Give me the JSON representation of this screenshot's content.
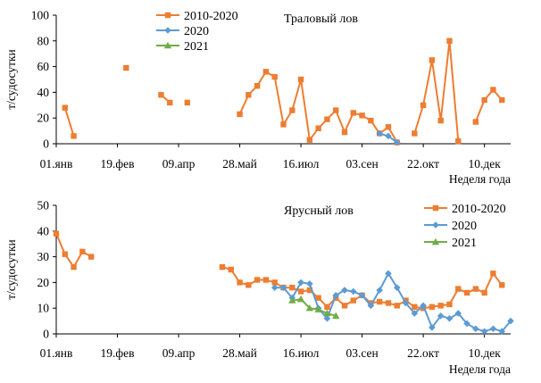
{
  "chart_data": [
    {
      "type": "line",
      "annotation": "Траловый лов",
      "ylabel": "т/судосутки",
      "xlabel": "Неделя года",
      "ylim": [
        0,
        100
      ],
      "yticks": [
        0,
        20,
        40,
        60,
        80,
        100
      ],
      "xlim": [
        1,
        53
      ],
      "xticks": [
        {
          "week": 1,
          "label": "01.янв"
        },
        {
          "week": 8,
          "label": "19.фев"
        },
        {
          "week": 15,
          "label": "09.апр"
        },
        {
          "week": 22,
          "label": "28.май"
        },
        {
          "week": 29,
          "label": "16.июл"
        },
        {
          "week": 36,
          "label": "03.сен"
        },
        {
          "week": 43,
          "label": "22.окт"
        },
        {
          "week": 50,
          "label": "10.дек"
        }
      ],
      "grid": false,
      "legend": "top-left",
      "series": [
        {
          "name": "2010-2020",
          "color": "#ED7D31",
          "marker": "square",
          "segments": [
            [
              [
                2,
                28
              ],
              [
                3,
                6
              ]
            ],
            [
              [
                9,
                59
              ]
            ],
            [
              [
                13,
                38
              ],
              [
                14,
                32
              ]
            ],
            [
              [
                16,
                32
              ]
            ],
            [
              [
                22,
                23
              ],
              [
                23,
                38
              ],
              [
                24,
                45
              ],
              [
                25,
                56
              ],
              [
                26,
                52
              ],
              [
                27,
                15
              ],
              [
                28,
                26
              ],
              [
                29,
                50
              ],
              [
                30,
                3
              ],
              [
                31,
                12
              ],
              [
                32,
                19
              ],
              [
                33,
                26
              ],
              [
                34,
                9
              ],
              [
                35,
                24
              ],
              [
                36,
                22
              ],
              [
                37,
                18
              ],
              [
                38,
                8
              ],
              [
                39,
                13
              ],
              [
                40,
                1
              ]
            ],
            [
              [
                42,
                8
              ],
              [
                43,
                30
              ],
              [
                44,
                65
              ],
              [
                45,
                18
              ],
              [
                46,
                80
              ],
              [
                47,
                2
              ]
            ],
            [
              [
                49,
                17
              ],
              [
                50,
                34
              ],
              [
                51,
                42
              ],
              [
                52,
                34
              ]
            ]
          ]
        },
        {
          "name": "2020",
          "color": "#5B9BD5",
          "marker": "diamond",
          "segments": [
            [
              [
                38,
                8
              ],
              [
                39,
                6
              ],
              [
                40,
                1
              ]
            ]
          ]
        },
        {
          "name": "2021",
          "color": "#70AD47",
          "marker": "triangle",
          "segments": []
        }
      ]
    },
    {
      "type": "line",
      "annotation": "Ярусный лов",
      "ylabel": "т/судосутки",
      "xlabel": "Неделя года",
      "ylim": [
        0,
        50
      ],
      "yticks": [
        0,
        10,
        20,
        30,
        40,
        50
      ],
      "xlim": [
        1,
        53
      ],
      "xticks": [
        {
          "week": 1,
          "label": "01.янв"
        },
        {
          "week": 8,
          "label": "19.фев"
        },
        {
          "week": 15,
          "label": "09.апр"
        },
        {
          "week": 22,
          "label": "28.май"
        },
        {
          "week": 29,
          "label": "16.июл"
        },
        {
          "week": 36,
          "label": "03.сен"
        },
        {
          "week": 43,
          "label": "22.окт"
        },
        {
          "week": 50,
          "label": "10.дек"
        }
      ],
      "grid": false,
      "legend": "top-right",
      "series": [
        {
          "name": "2010-2020",
          "color": "#ED7D31",
          "marker": "square",
          "segments": [
            [
              [
                1,
                39
              ],
              [
                2,
                31
              ],
              [
                3,
                26
              ],
              [
                4,
                32
              ],
              [
                5,
                30
              ]
            ],
            [
              [
                20,
                26
              ],
              [
                21,
                25
              ],
              [
                22,
                20
              ],
              [
                23,
                19
              ],
              [
                24,
                21
              ],
              [
                25,
                21
              ],
              [
                26,
                20
              ],
              [
                27,
                18
              ],
              [
                28,
                18
              ],
              [
                29,
                16.5
              ],
              [
                30,
                17
              ],
              [
                31,
                14
              ],
              [
                32,
                10.5
              ],
              [
                33,
                14
              ],
              [
                34,
                11
              ],
              [
                35,
                13
              ],
              [
                36,
                15
              ],
              [
                37,
                12
              ],
              [
                38,
                12.5
              ],
              [
                39,
                12
              ],
              [
                40,
                11
              ],
              [
                41,
                13
              ],
              [
                42,
                10.5
              ],
              [
                43,
                10
              ],
              [
                44,
                10.5
              ],
              [
                45,
                11
              ],
              [
                46,
                11.5
              ],
              [
                47,
                17.5
              ],
              [
                48,
                16
              ],
              [
                49,
                17.5
              ],
              [
                50,
                16
              ],
              [
                51,
                23.5
              ],
              [
                52,
                19
              ]
            ]
          ]
        },
        {
          "name": "2020",
          "color": "#5B9BD5",
          "marker": "diamond",
          "segments": [
            [
              [
                26,
                18
              ],
              [
                27,
                18
              ],
              [
                28,
                14
              ],
              [
                29,
                20
              ],
              [
                30,
                19.5
              ],
              [
                31,
                10
              ],
              [
                32,
                6
              ],
              [
                33,
                15
              ],
              [
                34,
                17
              ],
              [
                35,
                16.5
              ],
              [
                36,
                15
              ],
              [
                37,
                11
              ],
              [
                38,
                17
              ],
              [
                39,
                23.5
              ],
              [
                40,
                18
              ],
              [
                41,
                12
              ],
              [
                42,
                8
              ],
              [
                43,
                11
              ],
              [
                44,
                2.5
              ],
              [
                45,
                7
              ],
              [
                46,
                6
              ],
              [
                47,
                8
              ],
              [
                48,
                4
              ],
              [
                49,
                2
              ],
              [
                50,
                1
              ],
              [
                51,
                2
              ],
              [
                52,
                1
              ],
              [
                53,
                5
              ]
            ]
          ]
        },
        {
          "name": "2021",
          "color": "#70AD47",
          "marker": "triangle",
          "segments": [
            [
              [
                28,
                13
              ],
              [
                29,
                13.5
              ],
              [
                30,
                10
              ],
              [
                31,
                9.5
              ],
              [
                32,
                8
              ],
              [
                33,
                7
              ]
            ]
          ]
        }
      ]
    }
  ]
}
